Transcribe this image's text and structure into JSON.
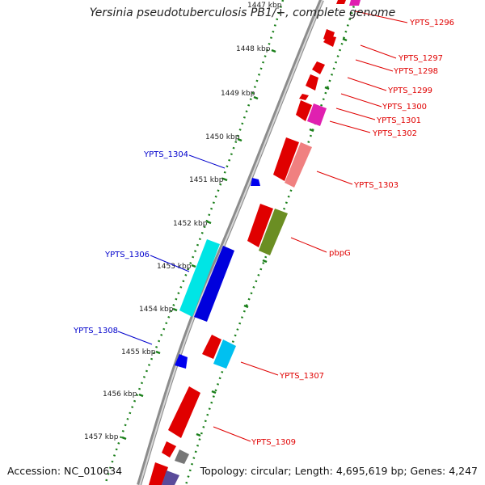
{
  "title": "Yersinia pseudotuberculosis PB1/+, complete genome",
  "footer": {
    "accession": "Accession: NC_010634",
    "summary": "Topology: circular; Length: 4,695,619 bp; Genes: 4,247"
  },
  "colors": {
    "backbone": "#8c8c8c",
    "ticks": "#1a7f1a",
    "forward_label": "#e00000",
    "reverse_label": "#0000cc"
  },
  "scale_labels": [
    "1447 kbp",
    "1448 kbp",
    "1449 kbp",
    "1450 kbp",
    "1451 kbp",
    "1452 kbp",
    "1453 kbp",
    "1454 kbp",
    "1455 kbp",
    "1456 kbp",
    "1457 kbp"
  ],
  "gene_labels": {
    "ypts_1296": "YPTS_1296",
    "ypts_1297": "YPTS_1297",
    "ypts_1298": "YPTS_1298",
    "ypts_1299": "YPTS_1299",
    "ypts_1300": "YPTS_1300",
    "ypts_1301": "YPTS_1301",
    "ypts_1302": "YPTS_1302",
    "ypts_1303": "YPTS_1303",
    "pbpg": "pbpG",
    "ypts_1307": "YPTS_1307",
    "ypts_1309": "YPTS_1309",
    "ypts_1304": "YPTS_1304",
    "ypts_1306": "YPTS_1306",
    "ypts_1308": "YPTS_1308"
  }
}
